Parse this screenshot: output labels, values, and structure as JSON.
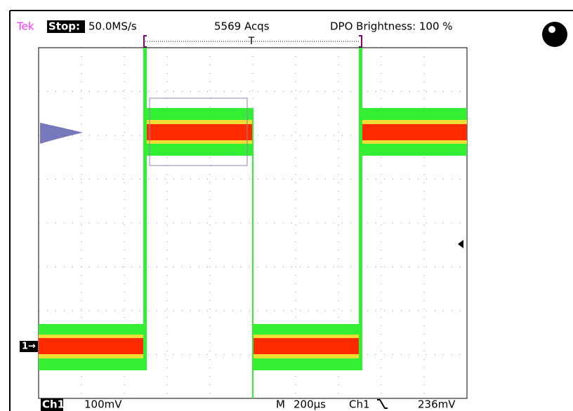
{
  "status_bar": {
    "brand": "Tek",
    "state": "Stop:",
    "sample_rate": "50.0MS/s",
    "acquisitions": "5569 Acqs",
    "brightness": "DPO Brightness: 100 %"
  },
  "trigger_marker": "T",
  "channel_marker": "1→",
  "footer": {
    "channel": "Ch1",
    "scale": "100mV",
    "timebase_label": "M",
    "timebase": "200µs",
    "trigger_source": "Ch1",
    "trigger_level": "236mV"
  }
}
